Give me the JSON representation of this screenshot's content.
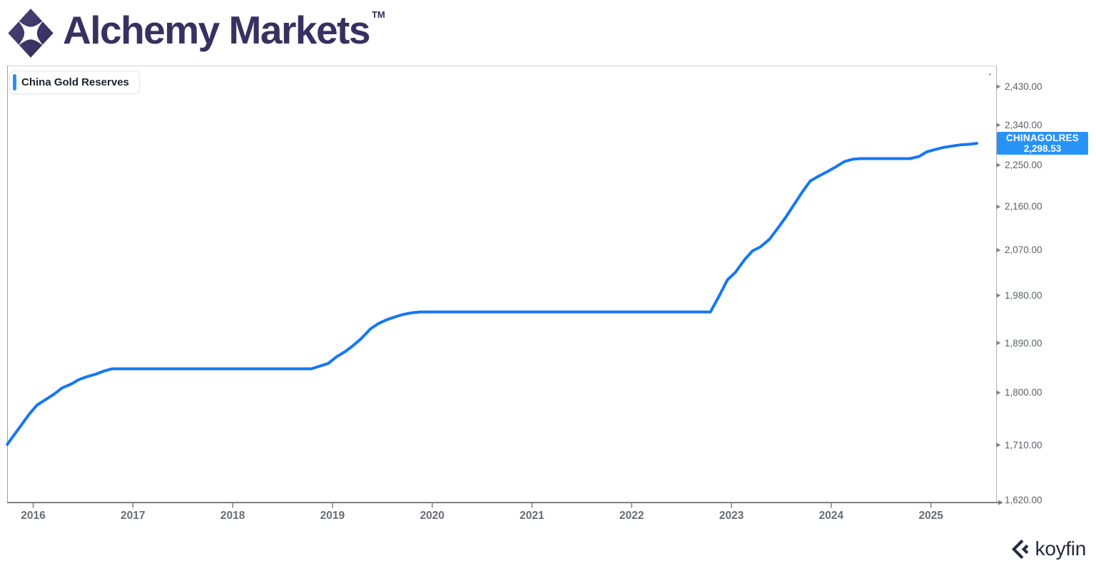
{
  "header": {
    "brand": "Alchemy Markets",
    "trademark": "TM"
  },
  "legend": {
    "label": "China Gold Reserves"
  },
  "badge": {
    "ticker": "CHINAGOLRES",
    "value": "2,298.53"
  },
  "footer": {
    "brand": "koyfin"
  },
  "colors": {
    "line": "#1577f2",
    "badge_bg": "#2893f6",
    "legend_bar": "#2b90f5",
    "brand_purple": "#373162",
    "koyfin_navy": "#252b3e",
    "axis_dark": "#7f7f84",
    "axis_light": "#b3b3b8",
    "tick_text": "#5c6066"
  },
  "chart_data": {
    "type": "line",
    "title": "China Gold Reserves",
    "legend_position": "top-left",
    "grid": false,
    "x_range": [
      2015.74,
      2025.66
    ],
    "y_scale": "log",
    "x_ticks": [
      2016,
      2017,
      2018,
      2019,
      2020,
      2021,
      2022,
      2023,
      2024,
      2025
    ],
    "y_ticks": [
      {
        "value": 2430,
        "label": "2,430.00"
      },
      {
        "value": 2340,
        "label": "2,340.00"
      },
      {
        "value": 2250,
        "label": "2,250.00"
      },
      {
        "value": 2160,
        "label": "2,160.00"
      },
      {
        "value": 2070,
        "label": "2,070.00"
      },
      {
        "value": 1980,
        "label": "1,980.00"
      },
      {
        "value": 1890,
        "label": "1,890.00"
      },
      {
        "value": 1800,
        "label": "1,800.00"
      },
      {
        "value": 1710,
        "label": "1,710.00"
      },
      {
        "value": 1620,
        "label": "1,620.00"
      }
    ],
    "series": [
      {
        "name": "CHINAGOLRES",
        "label": "China Gold Reserves",
        "color": "#1577f2",
        "last_value": 2298.53,
        "points": [
          [
            2015.74,
            1711.0
          ],
          [
            2015.79,
            1722.5
          ],
          [
            2015.88,
            1743.3
          ],
          [
            2015.96,
            1762.3
          ],
          [
            2016.04,
            1778.5
          ],
          [
            2016.13,
            1788.4
          ],
          [
            2016.21,
            1797.5
          ],
          [
            2016.29,
            1808.3
          ],
          [
            2016.38,
            1815.0
          ],
          [
            2016.46,
            1823.3
          ],
          [
            2016.54,
            1828.4
          ],
          [
            2016.63,
            1833.0
          ],
          [
            2016.71,
            1838.5
          ],
          [
            2016.79,
            1842.6
          ],
          [
            2018.79,
            1842.6
          ],
          [
            2018.96,
            1852.5
          ],
          [
            2019.04,
            1864.3
          ],
          [
            2019.13,
            1874.3
          ],
          [
            2019.21,
            1885.5
          ],
          [
            2019.29,
            1898.2
          ],
          [
            2019.38,
            1916.0
          ],
          [
            2019.46,
            1926.1
          ],
          [
            2019.54,
            1933.0
          ],
          [
            2019.63,
            1939.0
          ],
          [
            2019.71,
            1943.5
          ],
          [
            2019.79,
            1946.5
          ],
          [
            2019.88,
            1948.3
          ],
          [
            2022.79,
            1948.3
          ],
          [
            2022.88,
            1980.3
          ],
          [
            2022.96,
            2010.5
          ],
          [
            2023.04,
            2025.4
          ],
          [
            2023.13,
            2050.4
          ],
          [
            2023.21,
            2068.4
          ],
          [
            2023.29,
            2076.5
          ],
          [
            2023.38,
            2092.0
          ],
          [
            2023.46,
            2113.5
          ],
          [
            2023.54,
            2136.5
          ],
          [
            2023.63,
            2165.4
          ],
          [
            2023.71,
            2191.5
          ],
          [
            2023.79,
            2215.2
          ],
          [
            2023.88,
            2226.4
          ],
          [
            2023.96,
            2235.4
          ],
          [
            2024.04,
            2245.3
          ],
          [
            2024.13,
            2257.5
          ],
          [
            2024.21,
            2262.7
          ],
          [
            2024.29,
            2264.3
          ],
          [
            2024.79,
            2264.3
          ],
          [
            2024.88,
            2268.9
          ],
          [
            2024.96,
            2279.6
          ],
          [
            2025.04,
            2284.5
          ],
          [
            2025.13,
            2289.5
          ],
          [
            2025.21,
            2292.3
          ],
          [
            2025.29,
            2294.9
          ],
          [
            2025.38,
            2296.4
          ],
          [
            2025.46,
            2298.53
          ]
        ]
      }
    ]
  }
}
